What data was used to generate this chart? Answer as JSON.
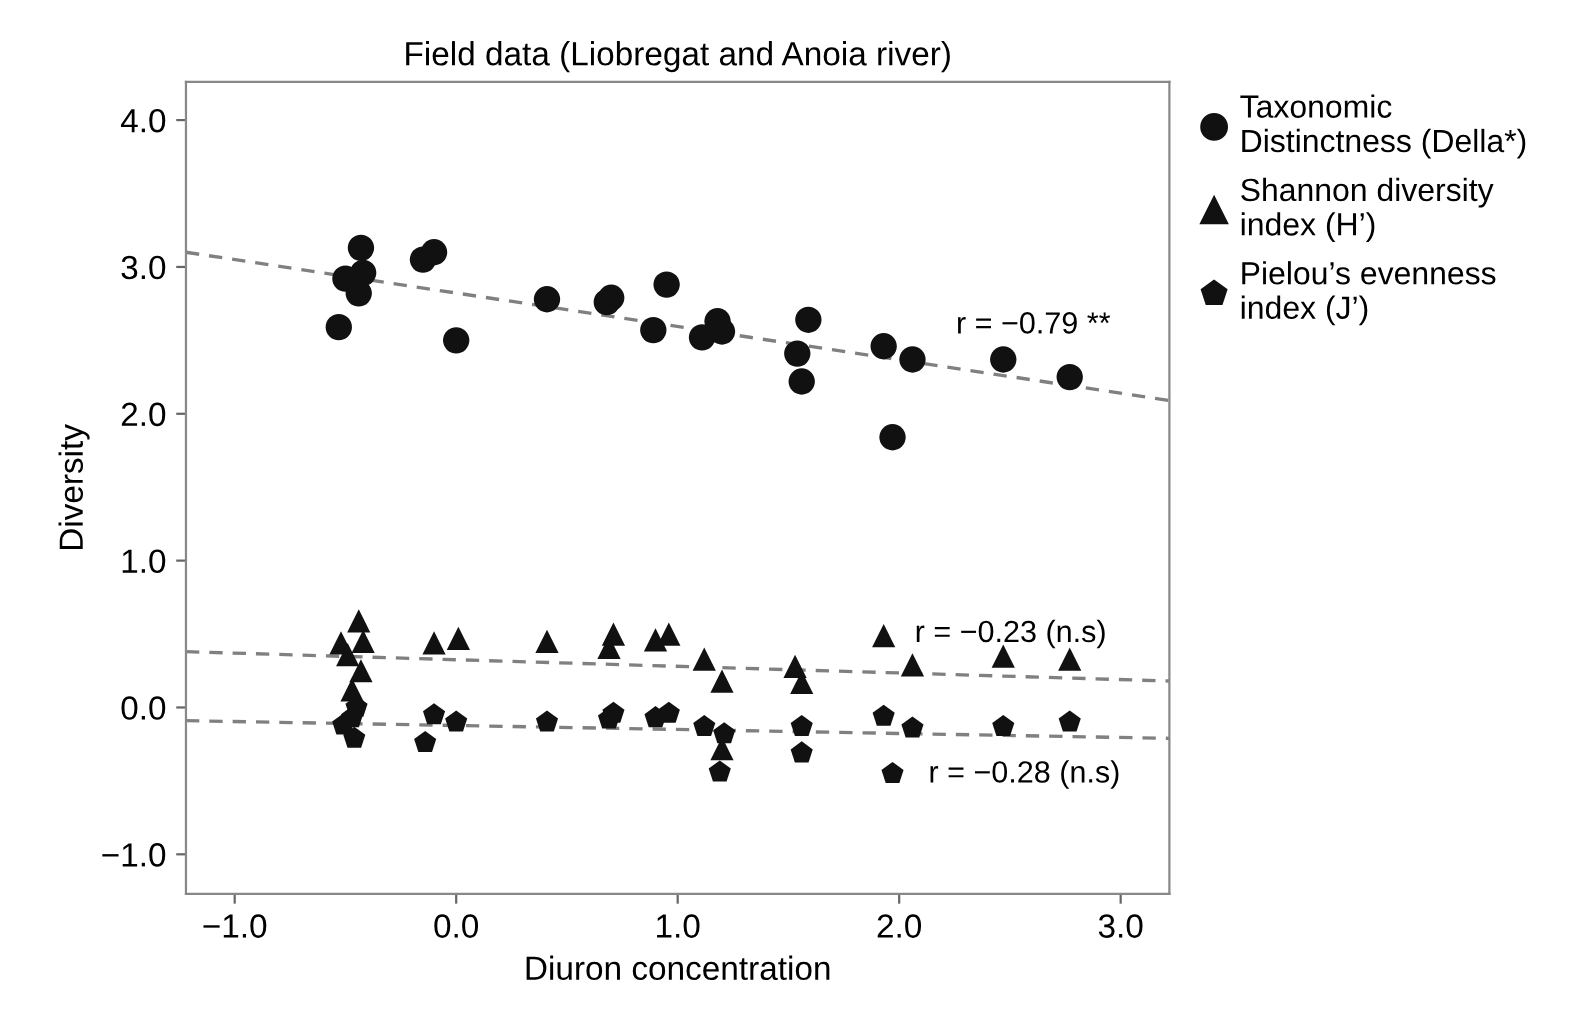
{
  "chart_data": {
    "type": "scatter",
    "title": "Field data (Liobregat and Anoia river)",
    "xlabel": "Diuron concentration",
    "ylabel": "Diversity",
    "xlim": [
      -1.22,
      3.22
    ],
    "ylim": [
      -1.27,
      4.26
    ],
    "xticks": [
      {
        "value": -1,
        "label": "−1.0"
      },
      {
        "value": 0,
        "label": "0.0"
      },
      {
        "value": 1,
        "label": "1.0"
      },
      {
        "value": 2,
        "label": "2.0"
      },
      {
        "value": 3,
        "label": "3.0"
      }
    ],
    "yticks": [
      {
        "value": -1,
        "label": "−1.0"
      },
      {
        "value": 0,
        "label": "0.0"
      },
      {
        "value": 1,
        "label": "1.0"
      },
      {
        "value": 2,
        "label": "2.0"
      },
      {
        "value": 3,
        "label": "3.0"
      },
      {
        "value": 4,
        "label": "4.0"
      }
    ],
    "grid": false,
    "legend": "top right",
    "series": [
      {
        "name": "Taxonomic\nDistinctness (Della*)",
        "color": "#111111",
        "marker": "circle",
        "x": [
          -0.43,
          -0.42,
          -0.5,
          -0.44,
          -0.53,
          -0.15,
          -0.1,
          0.0,
          0.41,
          0.7,
          0.68,
          0.95,
          0.89,
          1.18,
          1.2,
          1.11,
          1.59,
          1.54,
          1.56,
          1.93,
          2.06,
          1.97,
          2.47,
          2.77
        ],
        "values": [
          3.13,
          2.96,
          2.92,
          2.82,
          2.59,
          3.05,
          3.1,
          2.5,
          2.78,
          2.79,
          2.76,
          2.88,
          2.57,
          2.63,
          2.56,
          2.52,
          2.64,
          2.41,
          2.22,
          2.46,
          2.37,
          1.84,
          2.37,
          2.25
        ]
      },
      {
        "name": "Shannon diversity\nindex (H’)",
        "color": "#111111",
        "marker": "triangle",
        "x": [
          -0.44,
          -0.52,
          -0.42,
          -0.49,
          -0.43,
          -0.47,
          -0.1,
          0.01,
          0.41,
          0.71,
          0.69,
          0.9,
          0.96,
          1.12,
          1.2,
          1.2,
          1.53,
          1.56,
          1.93,
          2.06,
          2.47,
          2.77
        ],
        "values": [
          0.59,
          0.44,
          0.45,
          0.36,
          0.25,
          0.12,
          0.44,
          0.47,
          0.45,
          0.5,
          0.41,
          0.46,
          0.5,
          0.33,
          0.18,
          -0.28,
          0.28,
          0.17,
          0.49,
          0.29,
          0.35,
          0.33
        ]
      },
      {
        "name": "Pielou’s evenness\nindex (J’)",
        "color": "#111111",
        "x": [
          -0.51,
          -0.45,
          -0.46,
          -0.47,
          -0.14,
          -0.1,
          0.0,
          0.41,
          0.71,
          0.69,
          0.9,
          0.96,
          1.12,
          1.21,
          1.19,
          1.56,
          1.56,
          1.93,
          2.06,
          1.97,
          2.47,
          2.77
        ],
        "values": [
          -0.12,
          0.0,
          -0.21,
          -0.07,
          -0.24,
          -0.05,
          -0.1,
          -0.1,
          -0.04,
          -0.08,
          -0.07,
          -0.04,
          -0.13,
          -0.18,
          -0.44,
          -0.13,
          -0.31,
          -0.06,
          -0.14,
          -0.45,
          -0.13,
          -0.1
        ]
      },
      {
        "type": "line",
        "color": "#808080",
        "line_style": "dashed",
        "marker": "none",
        "x": [
          -1.22,
          3.22
        ],
        "values": [
          3.1,
          2.09
        ]
      },
      {
        "type": "line",
        "color": "#808080",
        "line_style": "dashed",
        "marker": "none",
        "x": [
          -1.22,
          3.22
        ],
        "values": [
          0.38,
          0.18
        ]
      },
      {
        "type": "line",
        "color": "#808080",
        "line_style": "dashed",
        "marker": "none",
        "x": [
          -1.22,
          3.22
        ],
        "values": [
          -0.09,
          -0.21
        ]
      }
    ],
    "annotations": [
      "r = −0.79 **",
      "r = −0.23 (n.s)",
      "r = −0.28 (n.s)"
    ]
  }
}
